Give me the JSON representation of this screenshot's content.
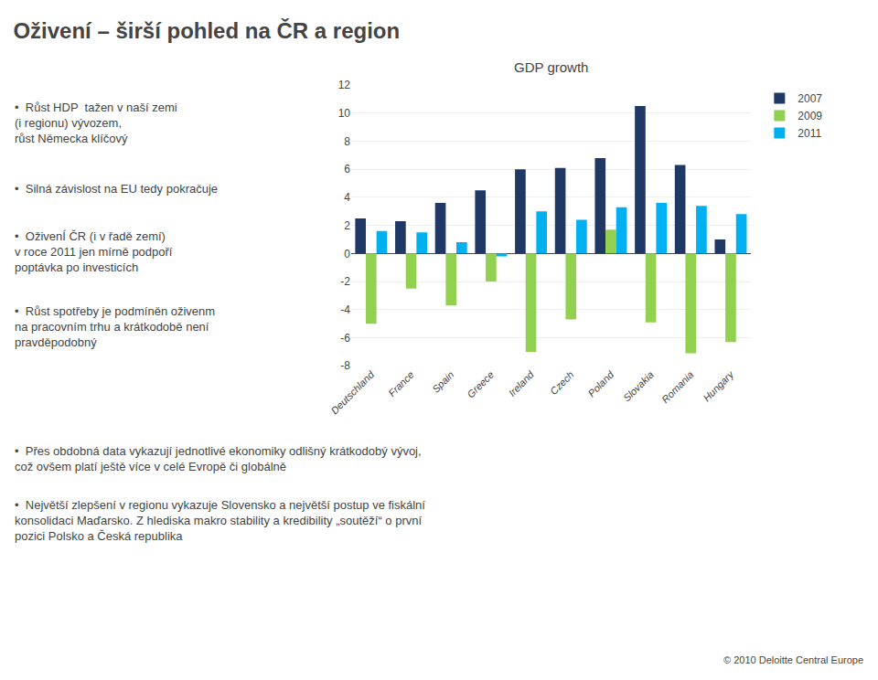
{
  "chart_data": {
    "type": "bar",
    "title": "Oživení – širší pohled na ČR a region",
    "subtitle": "GDP growth",
    "categories": [
      "Deutschland",
      "France",
      "Spain",
      "Greece",
      "Ireland",
      "Czech",
      "Poland",
      "Slovakia",
      "Romania",
      "Hungary"
    ],
    "series": [
      {
        "name": "2007",
        "color": "#1F3864",
        "values": [
          2.5,
          2.3,
          3.6,
          4.5,
          6.0,
          6.1,
          6.8,
          10.5,
          6.3,
          1.0
        ]
      },
      {
        "name": "2009",
        "color": "#92D050",
        "values": [
          -5.0,
          -2.5,
          -3.7,
          -2.0,
          -7.0,
          -4.7,
          1.7,
          -4.9,
          -7.1,
          -6.3
        ]
      },
      {
        "name": "2011",
        "color": "#00B0F0",
        "values": [
          1.6,
          1.5,
          0.8,
          -0.2,
          3.0,
          2.4,
          3.3,
          3.6,
          3.4,
          2.8
        ]
      }
    ],
    "ylim": [
      -8,
      12
    ],
    "yticks": [
      -8,
      -6,
      -4,
      -2,
      0,
      2,
      4,
      6,
      8,
      10,
      12
    ],
    "grid": true,
    "legend": "upper right",
    "annotations": [
      "•  Růst HDP  tažen v naší zemi\n(i regionu) vývozem,\nrůst Německa klíčový",
      "•  Silná závislost na EU tedy pokračuje",
      "•  OživenÍ ČR (i v řadě zemí)\nv roce 2011 jen mírně podpoří\npoptávka po investicích",
      "•  Růst spotřeby je podmíněn oživenm\nna pracovním trhu a krátkodobě není\npravděpodobný",
      "•  Přes obdobná data vykazují jednotlivé ekonomiky odlišný krátkodobý vývoj,\ncož ovšem platí ještě více v celé Evropě či globálně",
      "•  Největší zlepšení v regionu vykazuje Slovensko a největší postup ve fiskální\nkonsolidaci Maďarsko. Z hlediska makro stability a kredibility „soutěží“ o první\npozici Polsko a Česká republika",
      "© 2010 Deloitte Central Europe"
    ]
  }
}
